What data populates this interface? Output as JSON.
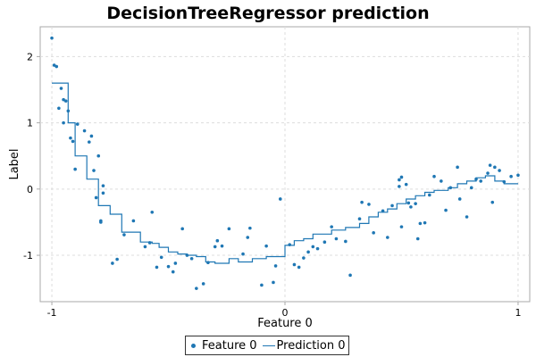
{
  "chart_data": {
    "type": "scatter",
    "title": "DecisionTreeRegressor prediction",
    "xlabel": "Feature 0",
    "ylabel": "Label",
    "xlim": [
      -1.05,
      1.05
    ],
    "ylim": [
      -1.7,
      2.45
    ],
    "xticks": [
      -1,
      0,
      1
    ],
    "yticks": [
      -1,
      0,
      1,
      2
    ],
    "grid": true,
    "legend_position": "bottom-center",
    "colors": {
      "points": "#1f77b4",
      "line": "#1f77b4",
      "grid": "#dddddd",
      "axis": "#aaaaaa"
    },
    "series": [
      {
        "name": "Feature 0",
        "kind": "scatter",
        "x": [
          -1.0,
          -0.99,
          -0.98,
          -0.97,
          -0.96,
          -0.95,
          -0.95,
          -0.94,
          -0.93,
          -0.92,
          -0.91,
          -0.9,
          -0.89,
          -0.86,
          -0.84,
          -0.83,
          -0.82,
          -0.81,
          -0.8,
          -0.79,
          -0.79,
          -0.78,
          -0.78,
          -0.74,
          -0.72,
          -0.69,
          -0.65,
          -0.6,
          -0.58,
          -0.57,
          -0.55,
          -0.53,
          -0.5,
          -0.48,
          -0.47,
          -0.44,
          -0.42,
          -0.4,
          -0.38,
          -0.35,
          -0.33,
          -0.3,
          -0.29,
          -0.27,
          -0.24,
          -0.18,
          -0.16,
          -0.15,
          -0.1,
          -0.08,
          -0.05,
          -0.04,
          -0.02,
          0.02,
          0.04,
          0.06,
          0.08,
          0.1,
          0.12,
          0.14,
          0.17,
          0.2,
          0.22,
          0.26,
          0.28,
          0.32,
          0.33,
          0.36,
          0.38,
          0.42,
          0.44,
          0.46,
          0.49,
          0.49,
          0.5,
          0.5,
          0.52,
          0.53,
          0.54,
          0.56,
          0.57,
          0.58,
          0.6,
          0.62,
          0.64,
          0.67,
          0.69,
          0.71,
          0.74,
          0.75,
          0.78,
          0.8,
          0.82,
          0.84,
          0.87,
          0.88,
          0.89,
          0.9,
          0.92,
          0.94,
          0.97,
          1.0
        ],
        "y": [
          2.28,
          1.87,
          1.85,
          1.22,
          1.52,
          1.35,
          1.0,
          1.33,
          1.18,
          0.77,
          0.72,
          0.3,
          0.98,
          0.88,
          0.71,
          0.8,
          0.28,
          -0.13,
          0.5,
          -0.5,
          -0.48,
          0.05,
          -0.06,
          -1.12,
          -1.06,
          -0.69,
          -0.48,
          -0.87,
          -0.81,
          -0.35,
          -1.18,
          -1.03,
          -1.17,
          -1.25,
          -1.12,
          -0.6,
          -1.0,
          -1.05,
          -1.5,
          -1.43,
          -1.11,
          -0.87,
          -0.78,
          -0.86,
          -0.6,
          -0.98,
          -0.73,
          -0.59,
          -1.45,
          -0.86,
          -1.41,
          -1.16,
          -0.15,
          -0.84,
          -1.14,
          -1.18,
          -1.04,
          -0.95,
          -0.87,
          -0.9,
          -0.8,
          -0.57,
          -0.75,
          -0.79,
          -1.3,
          -0.45,
          -0.2,
          -0.23,
          -0.66,
          -0.33,
          -0.73,
          -0.25,
          0.04,
          0.14,
          0.18,
          -0.57,
          0.07,
          -0.21,
          -0.27,
          -0.22,
          -0.75,
          -0.52,
          -0.51,
          -0.09,
          0.19,
          0.12,
          -0.32,
          0.02,
          0.33,
          -0.15,
          -0.42,
          0.02,
          0.15,
          0.12,
          0.24,
          0.36,
          -0.2,
          0.33,
          0.28,
          0.11,
          0.19,
          0.21
        ]
      },
      {
        "name": "Prediction 0",
        "kind": "step",
        "x": [
          -1.0,
          -0.93,
          -0.9,
          -0.85,
          -0.8,
          -0.75,
          -0.7,
          -0.62,
          -0.57,
          -0.54,
          -0.5,
          -0.46,
          -0.42,
          -0.38,
          -0.34,
          -0.3,
          -0.24,
          -0.2,
          -0.14,
          -0.08,
          0.0,
          0.04,
          0.08,
          0.12,
          0.2,
          0.26,
          0.32,
          0.36,
          0.4,
          0.44,
          0.48,
          0.52,
          0.56,
          0.6,
          0.64,
          0.7,
          0.74,
          0.78,
          0.82,
          0.86,
          0.9,
          0.94,
          1.0
        ],
        "y": [
          1.6,
          1.0,
          0.5,
          0.15,
          -0.25,
          -0.38,
          -0.65,
          -0.8,
          -0.82,
          -0.88,
          -0.95,
          -0.98,
          -1.0,
          -1.02,
          -1.1,
          -1.12,
          -1.05,
          -1.1,
          -1.05,
          -1.02,
          -0.85,
          -0.78,
          -0.75,
          -0.68,
          -0.62,
          -0.58,
          -0.52,
          -0.42,
          -0.35,
          -0.3,
          -0.22,
          -0.15,
          -0.1,
          -0.05,
          -0.02,
          0.02,
          0.08,
          0.12,
          0.17,
          0.2,
          0.12,
          0.08,
          0.08
        ]
      }
    ]
  }
}
